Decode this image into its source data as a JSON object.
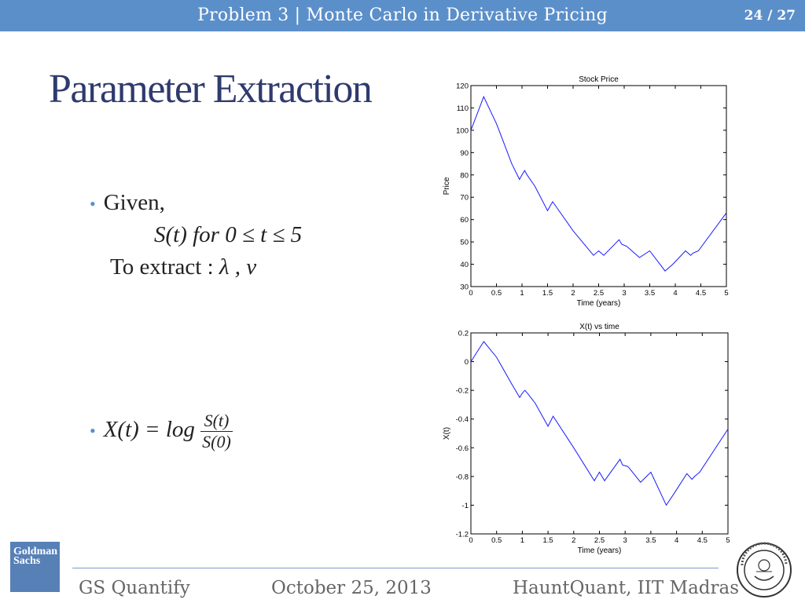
{
  "header": {
    "title": "Problem 3 | Monte Carlo in Derivative Pricing",
    "page": "24 / 27"
  },
  "slide": {
    "title": "Parameter Extraction",
    "bullet1": {
      "line1": "Given,",
      "line2_math": "S(t)  for  0 ≤ t ≤ 5",
      "line3_text": "To extract : ",
      "line3_math": "λ , v"
    },
    "bullet2": {
      "lhs": "X(t) = log",
      "num": "S(t)",
      "den": "S(0)"
    }
  },
  "footer": {
    "left": "GS Quantify",
    "center": "October 25, 2013",
    "right": "HauntQuant, IIT Madras"
  },
  "logos": {
    "left": "Goldman Sachs"
  },
  "colors": {
    "header": "#5b8fc9",
    "title": "#2f3a6e",
    "series": "#1a1aff"
  },
  "chart_data": [
    {
      "type": "line",
      "title": "Stock Price",
      "xlabel": "Time (years)",
      "ylabel": "Price",
      "xlim": [
        0,
        5
      ],
      "ylim": [
        30,
        120
      ],
      "xticks": [
        "0",
        "0.5",
        "1",
        "1.5",
        "2",
        "2.5",
        "3",
        "3.5",
        "4",
        "4.5",
        "5"
      ],
      "yticks": [
        "30",
        "40",
        "50",
        "60",
        "70",
        "80",
        "90",
        "100",
        "110",
        "120"
      ],
      "grid": false,
      "series": [
        {
          "x": [
            0,
            0.25,
            0.5,
            0.8,
            0.95,
            1.0,
            1.05,
            1.1,
            1.25,
            1.5,
            1.6,
            2.0,
            2.4,
            2.5,
            2.6,
            2.9,
            2.95,
            3.05,
            3.1,
            3.3,
            3.5,
            3.8,
            3.95,
            4.2,
            4.3,
            4.35,
            4.45,
            5.0
          ],
          "y": [
            100,
            115,
            103,
            85,
            78,
            80,
            82,
            80,
            75,
            64,
            68,
            55,
            44,
            46,
            44,
            51,
            49,
            48,
            47,
            43,
            46,
            37,
            40,
            46,
            44,
            45,
            46,
            63
          ]
        }
      ]
    },
    {
      "type": "line",
      "title": "X(t) vs time",
      "xlabel": "Time (years)",
      "ylabel": "X(t)",
      "xlim": [
        0,
        5
      ],
      "ylim": [
        -1.2,
        0.2
      ],
      "xticks": [
        "0",
        "0.5",
        "1",
        "1.5",
        "2",
        "2.5",
        "3",
        "3.5",
        "4",
        "4.5",
        "5"
      ],
      "yticks": [
        "-1.2",
        "-1",
        "-0.8",
        "-0.6",
        "-0.4",
        "-0.2",
        "0",
        "0.2"
      ],
      "grid": false,
      "series": [
        {
          "x": [
            0,
            0.25,
            0.5,
            0.8,
            0.95,
            1.0,
            1.05,
            1.1,
            1.25,
            1.5,
            1.6,
            2.0,
            2.4,
            2.5,
            2.6,
            2.9,
            2.95,
            3.05,
            3.1,
            3.3,
            3.5,
            3.8,
            3.95,
            4.2,
            4.3,
            4.35,
            4.45,
            5.0
          ],
          "y": [
            0,
            0.14,
            0.03,
            -0.16,
            -0.25,
            -0.22,
            -0.2,
            -0.22,
            -0.29,
            -0.45,
            -0.38,
            -0.6,
            -0.83,
            -0.77,
            -0.83,
            -0.68,
            -0.72,
            -0.73,
            -0.75,
            -0.84,
            -0.77,
            -1.0,
            -0.92,
            -0.78,
            -0.82,
            -0.8,
            -0.77,
            -0.47
          ]
        }
      ]
    }
  ]
}
